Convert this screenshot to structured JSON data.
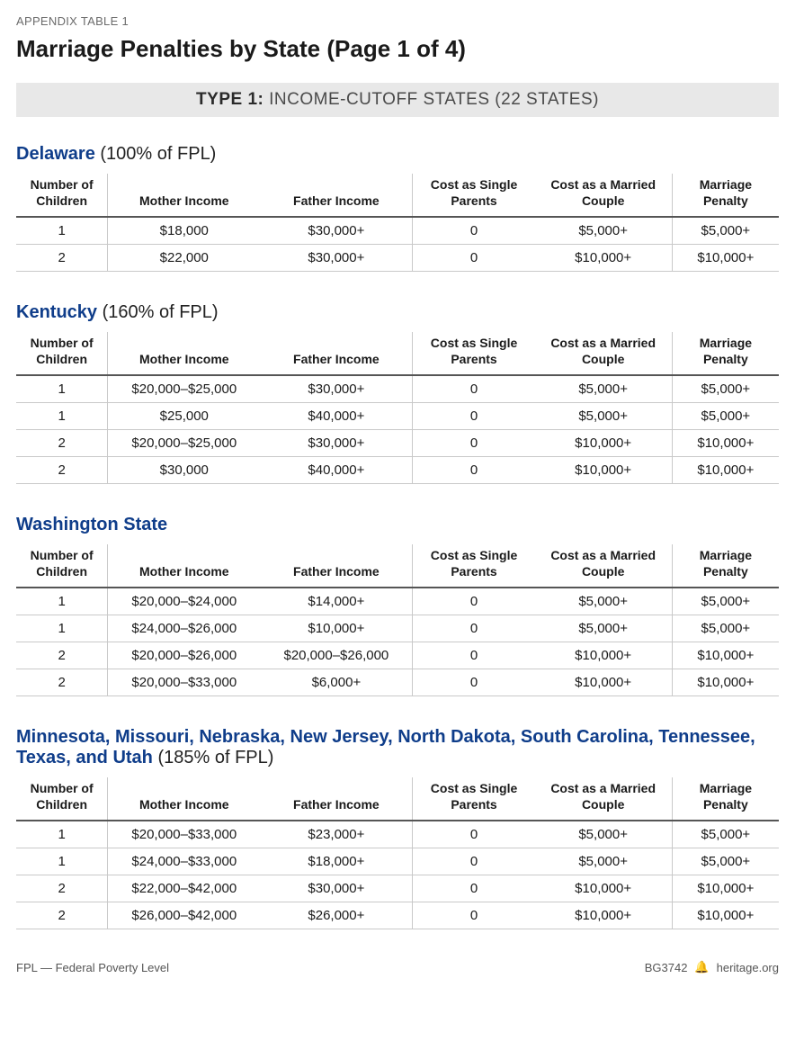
{
  "colors": {
    "state_heading": "#0f3d8a",
    "banner_bg": "#e8e8e8",
    "banner_text": "#4a4a4a",
    "rule_strong": "#555555",
    "rule_light": "#c9c9c9",
    "overline": "#6b6b6b"
  },
  "typography": {
    "title_fontsize": 26,
    "title_weight": 700,
    "section_heading_fontsize": 20,
    "table_header_fontsize": 14,
    "table_cell_fontsize": 15,
    "banner_fontsize": 19,
    "footer_fontsize": 13
  },
  "overline": "APPENDIX TABLE 1",
  "title": "Marriage Penalties by State (Page 1 of 4)",
  "banner_bold": "TYPE 1:",
  "banner_rest": " INCOME-CUTOFF STATES (22 STATES)",
  "columns": [
    "Number of Children",
    "Mother Income",
    "Father Income",
    "Cost as Single Parents",
    "Cost as a Married Couple",
    "Marriage Penalty"
  ],
  "column_widths_pct": [
    12,
    20,
    20,
    16,
    18,
    14
  ],
  "sections": [
    {
      "state": "Delaware",
      "fpl": " (100% of FPL)",
      "rows": [
        [
          "1",
          "$18,000",
          "$30,000+",
          "0",
          "$5,000+",
          "$5,000+"
        ],
        [
          "2",
          "$22,000",
          "$30,000+",
          "0",
          "$10,000+",
          "$10,000+"
        ]
      ]
    },
    {
      "state": "Kentucky",
      "fpl": " (160% of FPL)",
      "rows": [
        [
          "1",
          "$20,000–$25,000",
          "$30,000+",
          "0",
          "$5,000+",
          "$5,000+"
        ],
        [
          "1",
          "$25,000",
          "$40,000+",
          "0",
          "$5,000+",
          "$5,000+"
        ],
        [
          "2",
          "$20,000–$25,000",
          "$30,000+",
          "0",
          "$10,000+",
          "$10,000+"
        ],
        [
          "2",
          "$30,000",
          "$40,000+",
          "0",
          "$10,000+",
          "$10,000+"
        ]
      ]
    },
    {
      "state": "Washington State",
      "fpl": "",
      "rows": [
        [
          "1",
          "$20,000–$24,000",
          "$14,000+",
          "0",
          "$5,000+",
          "$5,000+"
        ],
        [
          "1",
          "$24,000–$26,000",
          "$10,000+",
          "0",
          "$5,000+",
          "$5,000+"
        ],
        [
          "2",
          "$20,000–$26,000",
          "$20,000–$26,000",
          "0",
          "$10,000+",
          "$10,000+"
        ],
        [
          "2",
          "$20,000–$33,000",
          "$6,000+",
          "0",
          "$10,000+",
          "$10,000+"
        ]
      ]
    },
    {
      "state": "Minnesota, Missouri, Nebraska, New Jersey, North Dakota, South Carolina, Tennessee, Texas, and Utah",
      "fpl": " (185% of FPL)",
      "rows": [
        [
          "1",
          "$20,000–$33,000",
          "$23,000+",
          "0",
          "$5,000+",
          "$5,000+"
        ],
        [
          "1",
          "$24,000–$33,000",
          "$18,000+",
          "0",
          "$5,000+",
          "$5,000+"
        ],
        [
          "2",
          "$22,000–$42,000",
          "$30,000+",
          "0",
          "$10,000+",
          "$10,000+"
        ],
        [
          "2",
          "$26,000–$42,000",
          "$26,000+",
          "0",
          "$10,000+",
          "$10,000+"
        ]
      ]
    }
  ],
  "footer_left": "FPL — Federal Poverty Level",
  "footer_doc": "BG3742",
  "footer_site": "heritage.org",
  "footer_icon": "🔔"
}
